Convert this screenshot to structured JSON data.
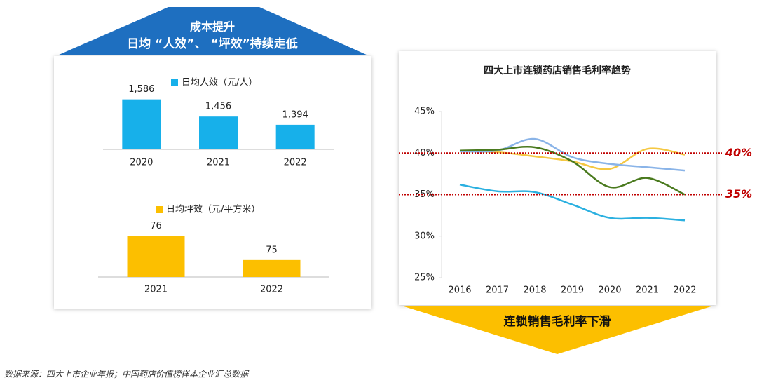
{
  "header": {
    "lines": [
      "成本提升",
      "日均 “人效”、 “坪效”持续走低"
    ]
  },
  "chart_data": [
    {
      "type": "bar",
      "categories": [
        "2020",
        "2021",
        "2022"
      ],
      "series": [
        {
          "name": "日均人效（元/人）",
          "color": "#17b0ea",
          "values": [
            1586,
            1456,
            1394
          ],
          "value_labels": [
            "1,586",
            "1,456",
            "1,394"
          ]
        }
      ],
      "ylim": [
        1208,
        1600
      ]
    },
    {
      "type": "bar",
      "categories": [
        "2021",
        "2022"
      ],
      "series": [
        {
          "name": "日均坪效（元/平方米）",
          "color": "#fcbf00",
          "values": [
            76,
            75
          ]
        }
      ],
      "ylim": [
        74.3,
        76.3
      ]
    },
    {
      "type": "line",
      "title": "四大上市连锁药店销售毛利率趋势",
      "categories": [
        "2016",
        "2017",
        "2018",
        "2019",
        "2020",
        "2021",
        "2022"
      ],
      "series": [
        {
          "color": "#f5c842",
          "values": [
            40.2,
            40.1,
            39.6,
            39.0,
            38.1,
            40.5,
            39.8
          ]
        },
        {
          "color": "#8ab4e8",
          "values": [
            40.2,
            40.3,
            41.7,
            39.5,
            38.7,
            38.3,
            37.9
          ]
        },
        {
          "color": "#4a7a1e",
          "values": [
            40.3,
            40.4,
            40.7,
            39.0,
            35.9,
            37.0,
            35.0
          ]
        },
        {
          "color": "#2bb0e0",
          "values": [
            36.2,
            35.4,
            35.3,
            33.8,
            32.2,
            32.2,
            31.9
          ]
        }
      ],
      "ylim": [
        25,
        45
      ],
      "yticks": [
        {
          "value": 25,
          "label": "25%"
        },
        {
          "value": 30,
          "label": "30%"
        },
        {
          "value": 35,
          "label": "35%"
        },
        {
          "value": 40,
          "label": "40%"
        },
        {
          "value": 45,
          "label": "45%"
        }
      ],
      "reference_lines": [
        {
          "value": 40,
          "label": "40%",
          "color": "#c00000"
        },
        {
          "value": 35,
          "label": "35%",
          "color": "#c00000"
        }
      ]
    }
  ],
  "footer_banner": "连锁销售毛利率下滑",
  "source": "数据来源：四大上市企业年报；中国药店价值榜样本企业汇总数据"
}
